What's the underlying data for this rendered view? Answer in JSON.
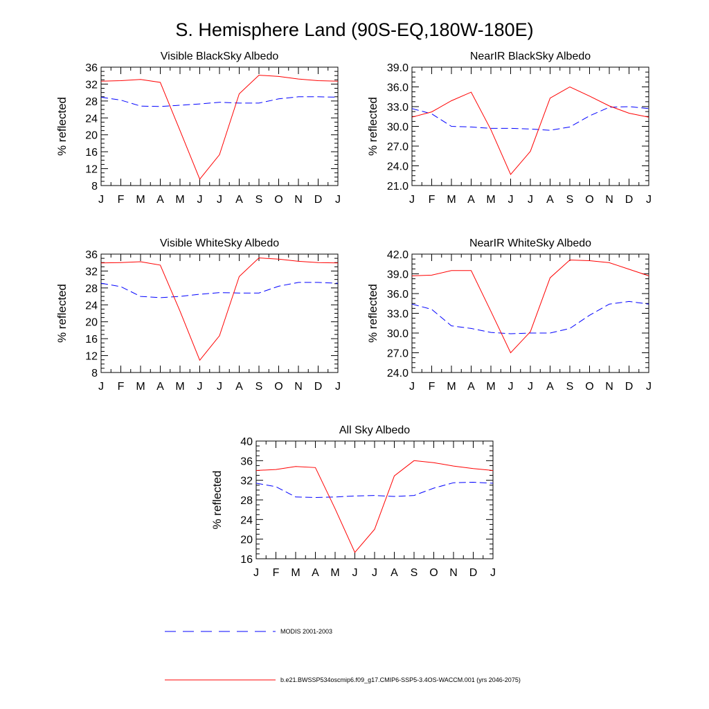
{
  "figure_title": "S. Hemisphere Land (90S-EQ,180W-180E)",
  "legend": [
    {
      "label": "MODIS 2001-2003",
      "color": "#0000ff",
      "style": "dashed"
    },
    {
      "label": "b.e21.BWSSP534oscmip6.f09_g17.CMIP6-SSP5-3.4OS-WACCM.001 (yrs 2046-2075)",
      "color": "#ff0000",
      "style": "solid"
    }
  ],
  "chart_data": [
    {
      "type": "line",
      "title": "Visible BlackSky Albedo",
      "ylabel": "% reflected",
      "xlabel": "",
      "categories": [
        "J",
        "F",
        "M",
        "A",
        "M",
        "J",
        "J",
        "A",
        "S",
        "O",
        "N",
        "D",
        "J"
      ],
      "ylim": [
        8,
        36
      ],
      "yticks": [
        "8",
        "12",
        "16",
        "20",
        "24",
        "28",
        "32",
        "36"
      ],
      "series": [
        {
          "name": "MODIS 2001-2003",
          "values": [
            28.9,
            28.2,
            26.8,
            26.7,
            27.0,
            27.3,
            27.7,
            27.5,
            27.5,
            28.5,
            29.0,
            29.0,
            28.9
          ]
        },
        {
          "name": "b.e21.BWSSP534oscmip6.f09_g17.CMIP6-SSP5-3.4OS-WACCM.001 (yrs 2046-2075)",
          "values": [
            32.7,
            32.8,
            33.1,
            32.4,
            21.0,
            9.5,
            15.3,
            29.7,
            34.1,
            33.8,
            33.2,
            32.8,
            32.7
          ]
        }
      ]
    },
    {
      "type": "line",
      "title": "NearIR BlackSky Albedo",
      "ylabel": "% reflected",
      "xlabel": "",
      "categories": [
        "J",
        "F",
        "M",
        "A",
        "M",
        "J",
        "J",
        "A",
        "S",
        "O",
        "N",
        "D",
        "J"
      ],
      "ylim": [
        21,
        39
      ],
      "yticks": [
        "21.0",
        "24.0",
        "27.0",
        "30.0",
        "33.0",
        "36.0",
        "39.0"
      ],
      "series": [
        {
          "name": "MODIS 2001-2003",
          "values": [
            32.7,
            31.9,
            30.0,
            29.9,
            29.7,
            29.7,
            29.6,
            29.4,
            29.9,
            31.6,
            32.9,
            33.0,
            32.7
          ]
        },
        {
          "name": "b.e21.BWSSP534oscmip6.f09_g17.CMIP6-SSP5-3.4OS-WACCM.001 (yrs 2046-2075)",
          "values": [
            31.4,
            32.2,
            33.9,
            35.2,
            29.5,
            22.7,
            26.2,
            34.3,
            36.0,
            34.6,
            33.1,
            32.0,
            31.4
          ]
        }
      ]
    },
    {
      "type": "line",
      "title": "Visible WhiteSky Albedo",
      "ylabel": "% reflected",
      "xlabel": "",
      "categories": [
        "J",
        "F",
        "M",
        "A",
        "M",
        "J",
        "J",
        "A",
        "S",
        "O",
        "N",
        "D",
        "J"
      ],
      "ylim": [
        8,
        36
      ],
      "yticks": [
        "8",
        "12",
        "16",
        "20",
        "24",
        "28",
        "32",
        "36"
      ],
      "series": [
        {
          "name": "MODIS 2001-2003",
          "values": [
            29.1,
            28.3,
            26.0,
            25.7,
            26.0,
            26.5,
            26.9,
            26.8,
            26.8,
            28.4,
            29.3,
            29.3,
            29.1
          ]
        },
        {
          "name": "b.e21.BWSSP534oscmip6.f09_g17.CMIP6-SSP5-3.4OS-WACCM.001 (yrs 2046-2075)",
          "values": [
            33.9,
            34.0,
            34.2,
            33.4,
            22.5,
            10.9,
            16.7,
            30.7,
            35.1,
            34.8,
            34.3,
            34.0,
            33.9
          ]
        }
      ]
    },
    {
      "type": "line",
      "title": "NearIR WhiteSky Albedo",
      "ylabel": "% reflected",
      "xlabel": "",
      "categories": [
        "J",
        "F",
        "M",
        "A",
        "M",
        "J",
        "J",
        "A",
        "S",
        "O",
        "N",
        "D",
        "J"
      ],
      "ylim": [
        24,
        42
      ],
      "yticks": [
        "24.0",
        "27.0",
        "30.0",
        "33.0",
        "36.0",
        "39.0",
        "42.0"
      ],
      "series": [
        {
          "name": "MODIS 2001-2003",
          "values": [
            34.4,
            33.6,
            31.1,
            30.7,
            30.1,
            29.9,
            30.0,
            30.0,
            30.7,
            32.7,
            34.4,
            34.8,
            34.4
          ]
        },
        {
          "name": "b.e21.BWSSP534oscmip6.f09_g17.CMIP6-SSP5-3.4OS-WACCM.001 (yrs 2046-2075)",
          "values": [
            38.7,
            38.8,
            39.5,
            39.5,
            33.3,
            27.0,
            30.2,
            38.4,
            41.1,
            41.0,
            40.7,
            39.7,
            38.7
          ]
        }
      ]
    },
    {
      "type": "line",
      "title": "All Sky Albedo",
      "ylabel": "% reflected",
      "xlabel": "",
      "categories": [
        "J",
        "F",
        "M",
        "A",
        "M",
        "J",
        "J",
        "A",
        "S",
        "O",
        "N",
        "D",
        "J"
      ],
      "ylim": [
        16,
        40
      ],
      "yticks": [
        "16",
        "20",
        "24",
        "28",
        "32",
        "36",
        "40"
      ],
      "series": [
        {
          "name": "MODIS 2001-2003",
          "values": [
            31.4,
            30.7,
            28.6,
            28.5,
            28.6,
            28.8,
            28.9,
            28.7,
            28.9,
            30.4,
            31.5,
            31.6,
            31.4
          ]
        },
        {
          "name": "b.e21.BWSSP534oscmip6.f09_g17.CMIP6-SSP5-3.4OS-WACCM.001 (yrs 2046-2075)",
          "values": [
            34.0,
            34.2,
            34.8,
            34.6,
            26.2,
            17.3,
            22.0,
            32.9,
            36.0,
            35.6,
            34.9,
            34.4,
            34.0
          ]
        }
      ]
    }
  ]
}
